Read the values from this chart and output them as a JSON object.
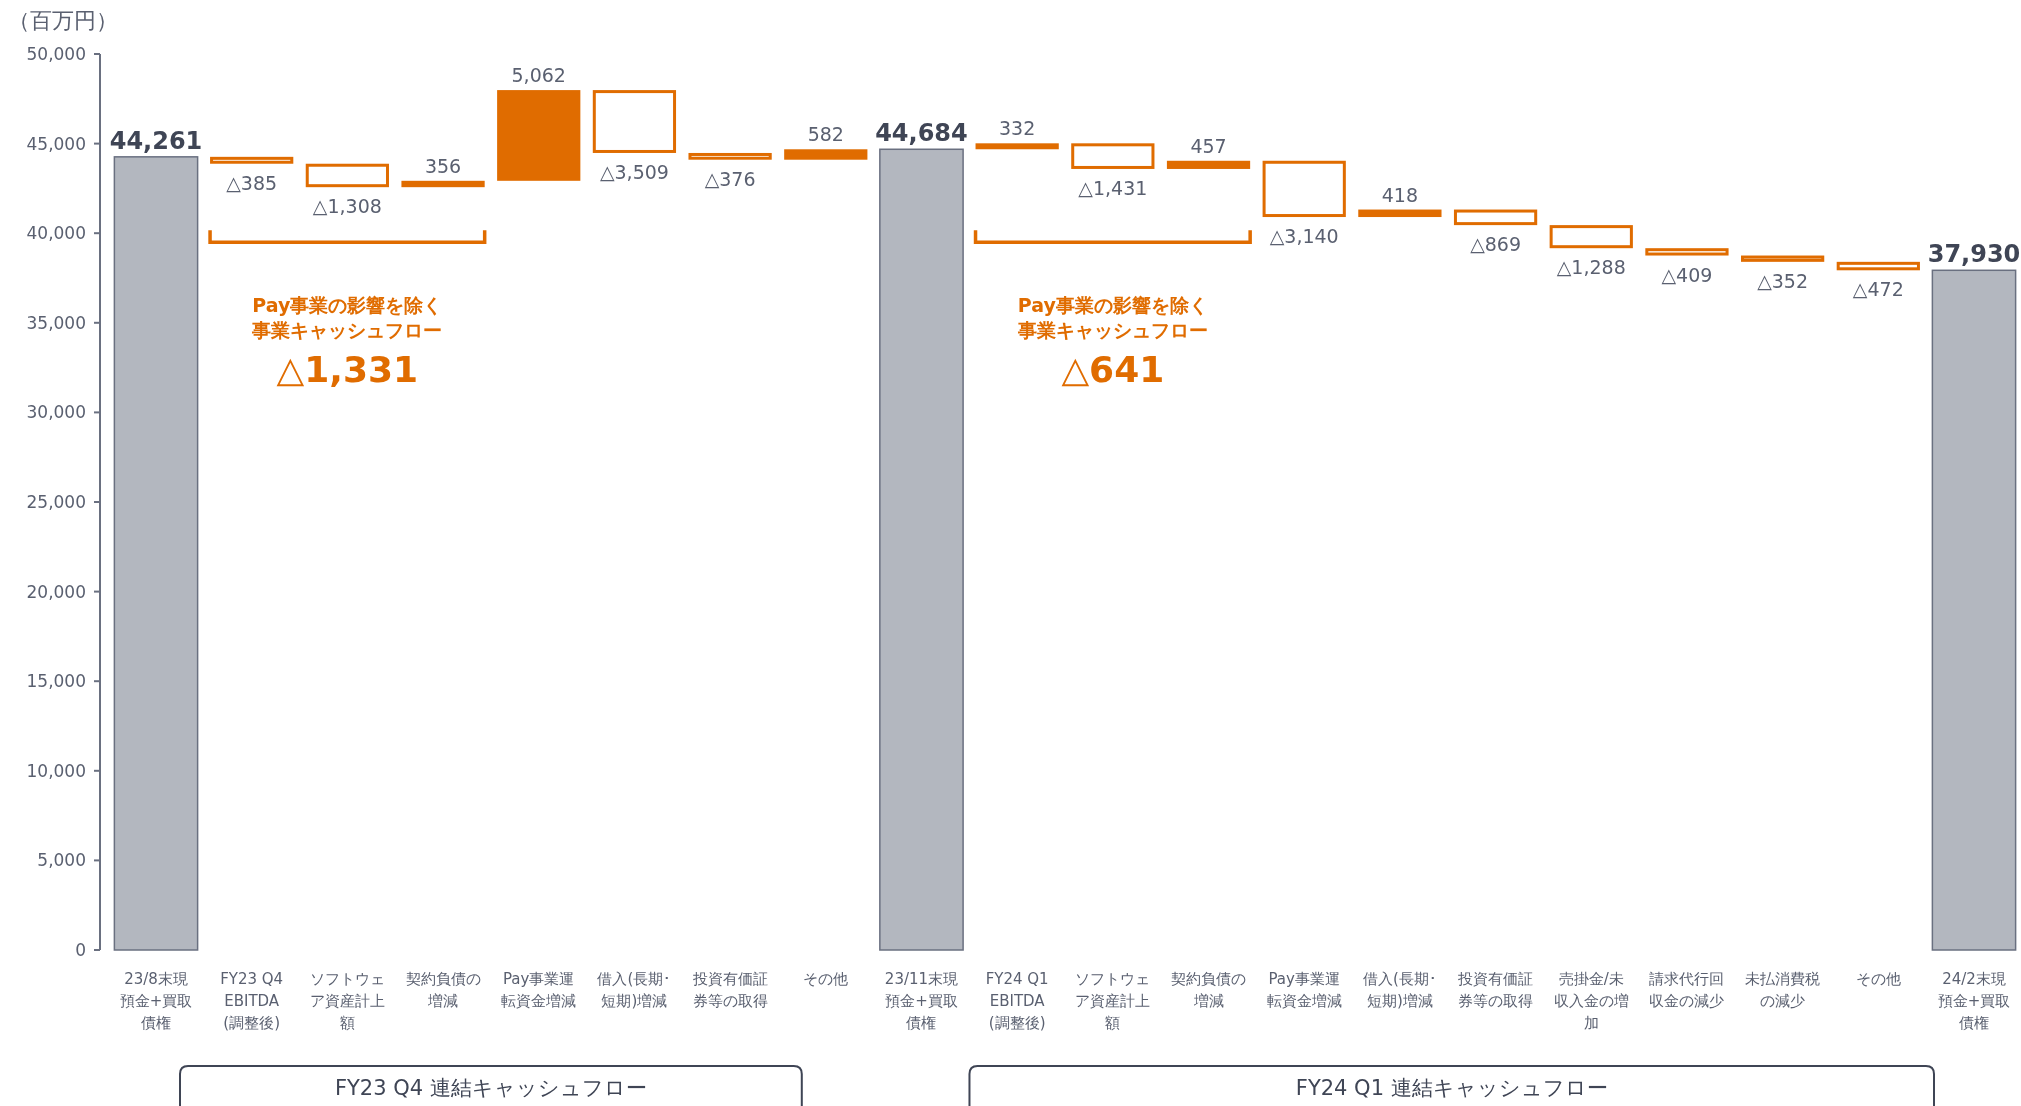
{
  "chart_data": {
    "type": "bar",
    "ylabel": "（百万円）",
    "categories": [
      "23/8末現預金+買取債権",
      "FY23 Q4 EBITDA (調整後)",
      "ソフトウェア資産計上額",
      "契約負債の増減",
      "Pay事業運転資金増減",
      "借入(長期･短期)増減",
      "投資有価証券等の取得",
      "その他",
      "23/11末現預金+買取債権",
      "FY24 Q1 EBITDA (調整後)",
      "ソフトウェア資産計上額",
      "契約負債の増減",
      "Pay事業運転資金増減",
      "借入(長期･短期)増減",
      "投資有価証券等の取得",
      "売掛金/未収入金の増加",
      "請求代行回収金の減少",
      "未払消費税の減少",
      "その他",
      "24/2末現預金+買取債権"
    ],
    "values": [
      44261,
      -385,
      -1308,
      356,
      5062,
      -3509,
      -376,
      582,
      44684,
      332,
      -1431,
      457,
      -3140,
      418,
      -869,
      -1288,
      -409,
      -352,
      -472,
      37930
    ],
    "base": [
      0,
      44261,
      43876,
      42568,
      42924,
      47986,
      44477,
      44101,
      0,
      44684,
      45016,
      43585,
      44042,
      40902,
      41320,
      40451,
      39163,
      38754,
      38402,
      0
    ],
    "value_labels": [
      "44,261",
      "△385",
      "△1,308",
      "356",
      "5,062",
      "△3,509",
      "△376",
      "582",
      "44,684",
      "332",
      "△1,431",
      "457",
      "△3,140",
      "418",
      "△869",
      "△1,288",
      "△409",
      "△352",
      "△472",
      "37,930"
    ],
    "colors": [
      "#b3b7bf",
      "#e06c00",
      "#e06c00",
      "#e06c00",
      "#e06c00",
      "#e06c00",
      "#e06c00",
      "#e06c00",
      "#b3b7bf",
      "#e06c00",
      "#e06c00",
      "#e06c00",
      "#e06c00",
      "#e06c00",
      "#e06c00",
      "#e06c00",
      "#e06c00",
      "#e06c00",
      "#e06c00",
      "#b3b7bf"
    ],
    "ylim": [
      0,
      50000
    ],
    "yticks": [
      {
        "value": 0,
        "label": "0"
      },
      {
        "value": 5000,
        "label": "5,000"
      },
      {
        "value": 10000,
        "label": "10,000"
      },
      {
        "value": 15000,
        "label": "15,000"
      },
      {
        "value": 20000,
        "label": "20,000"
      },
      {
        "value": 25000,
        "label": "25,000"
      },
      {
        "value": 30000,
        "label": "30,000"
      },
      {
        "value": 35000,
        "label": "35,000"
      },
      {
        "value": 40000,
        "label": "40,000"
      },
      {
        "value": 45000,
        "label": "45,000"
      },
      {
        "value": 50000,
        "label": "50,000"
      }
    ],
    "annotations": [
      "Pay事業の影響を除く",
      "事業キャッシュフロー",
      "△1,331",
      "Pay事業の影響を除く",
      "事業キャッシュフロー",
      "△641",
      "FY23 Q4 連結キャッシュフロー",
      "FY24 Q1 連結キャッシュフロー"
    ]
  }
}
